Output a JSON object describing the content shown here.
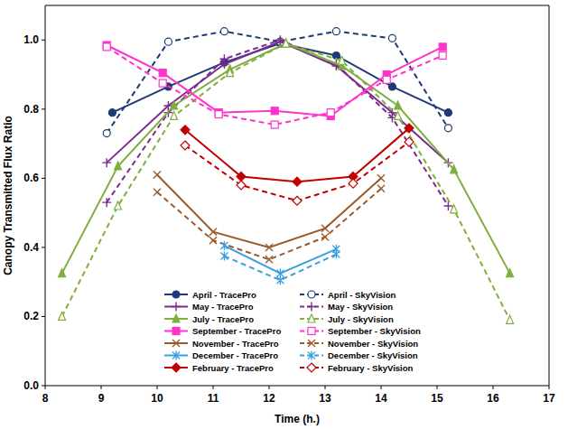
{
  "chart_data": {
    "type": "line",
    "x_label": "Time (h.)",
    "y_label": "Canopy Transmitted Flux Ratio",
    "xlim": [
      8,
      17
    ],
    "xticks": [
      8,
      9,
      10,
      11,
      12,
      13,
      14,
      15,
      16,
      17
    ],
    "ylim": [
      0,
      1.1
    ],
    "yticks": [
      {
        "value": 0,
        "label": "0.0"
      },
      0.2,
      0.4,
      0.6,
      0.8,
      {
        "value": 1,
        "label": "1.0"
      }
    ],
    "grid": false,
    "legend": "bottom",
    "series": [
      {
        "name": "April - TracePro",
        "color": "#1f3a78",
        "marker": "circle",
        "line_style": "solid",
        "x": [
          9.2,
          10.2,
          11.2,
          12.2,
          13.2,
          14.2,
          15.2
        ],
        "values": [
          0.79,
          0.865,
          0.935,
          0.99,
          0.955,
          0.865,
          0.79
        ]
      },
      {
        "name": "April - SkyVision",
        "color": "#1f3a78",
        "marker": "circle",
        "line_style": "dashed",
        "x": [
          9.1,
          10.2,
          11.2,
          12.2,
          13.2,
          14.2,
          15.2
        ],
        "values": [
          0.73,
          0.995,
          1.025,
          0.995,
          1.025,
          1.005,
          0.745
        ]
      },
      {
        "name": "May - TracePro",
        "color": "#7b2c8e",
        "marker": "plus",
        "line_style": "solid",
        "x": [
          9.1,
          10.2,
          11.2,
          12.2,
          13.2,
          14.2,
          15.2
        ],
        "values": [
          0.645,
          0.81,
          0.93,
          0.995,
          0.925,
          0.79,
          0.645
        ]
      },
      {
        "name": "May - SkyVision",
        "color": "#7b2c8e",
        "marker": "plus",
        "line_style": "dashed",
        "x": [
          9.1,
          10.2,
          11.2,
          12.2,
          13.2,
          14.2,
          15.2
        ],
        "values": [
          0.53,
          0.79,
          0.945,
          1.0,
          0.93,
          0.775,
          0.52
        ]
      },
      {
        "name": "July - TracePro",
        "color": "#7faf3f",
        "marker": "triangle",
        "line_style": "solid",
        "x": [
          8.3,
          9.3,
          10.3,
          11.3,
          12.3,
          13.3,
          14.3,
          15.3,
          16.3
        ],
        "values": [
          0.325,
          0.635,
          0.81,
          0.915,
          0.99,
          0.925,
          0.81,
          0.625,
          0.325
        ]
      },
      {
        "name": "July - SkyVision",
        "color": "#7faf3f",
        "marker": "triangle",
        "line_style": "dashed",
        "x": [
          8.3,
          9.3,
          10.3,
          11.3,
          12.3,
          13.3,
          14.3,
          15.3,
          16.3
        ],
        "values": [
          0.2,
          0.52,
          0.78,
          0.905,
          0.99,
          0.94,
          0.78,
          0.51,
          0.19
        ]
      },
      {
        "name": "September - TracePro",
        "color": "#ff33cc",
        "marker": "square",
        "line_style": "solid",
        "x": [
          9.1,
          10.1,
          11.1,
          12.1,
          13.1,
          14.1,
          15.1
        ],
        "values": [
          0.985,
          0.905,
          0.79,
          0.795,
          0.78,
          0.9,
          0.98
        ]
      },
      {
        "name": "September - SkyVision",
        "color": "#ff33cc",
        "marker": "square",
        "line_style": "dashed",
        "x": [
          9.1,
          10.1,
          11.1,
          12.1,
          13.1,
          14.1,
          15.1
        ],
        "values": [
          0.98,
          0.875,
          0.785,
          0.755,
          0.79,
          0.885,
          0.955
        ]
      },
      {
        "name": "November - TracePro",
        "color": "#9c5a2a",
        "marker": "x",
        "line_style": "solid",
        "x": [
          10,
          11,
          12,
          13,
          14
        ],
        "values": [
          0.61,
          0.445,
          0.4,
          0.455,
          0.6
        ]
      },
      {
        "name": "November - SkyVision",
        "color": "#9c5a2a",
        "marker": "x",
        "line_style": "dashed",
        "x": [
          10,
          11,
          12,
          13,
          14
        ],
        "values": [
          0.56,
          0.42,
          0.365,
          0.43,
          0.57
        ]
      },
      {
        "name": "December - TracePro",
        "color": "#3aa0dc",
        "marker": "asterisk",
        "line_style": "solid",
        "x": [
          11.2,
          12.2,
          13.2
        ],
        "values": [
          0.405,
          0.325,
          0.395
        ]
      },
      {
        "name": "December - SkyVision",
        "color": "#3aa0dc",
        "marker": "asterisk",
        "line_style": "dashed",
        "x": [
          11.2,
          12.2,
          13.2
        ],
        "values": [
          0.375,
          0.305,
          0.38
        ]
      },
      {
        "name": "February - TracePro",
        "color": "#c00000",
        "marker": "diamond",
        "line_style": "solid",
        "x": [
          10.5,
          11.5,
          12.5,
          13.5,
          14.5
        ],
        "values": [
          0.74,
          0.605,
          0.59,
          0.605,
          0.745
        ]
      },
      {
        "name": "February - SkyVision",
        "color": "#c00000",
        "marker": "diamond",
        "line_style": "dashed",
        "x": [
          10.5,
          11.5,
          12.5,
          13.5,
          14.5
        ],
        "values": [
          0.695,
          0.58,
          0.535,
          0.585,
          0.705
        ]
      }
    ]
  }
}
